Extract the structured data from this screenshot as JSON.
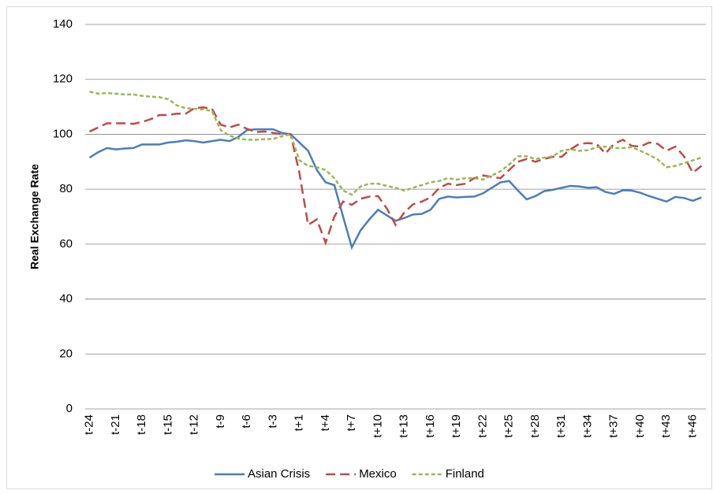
{
  "chart_data": {
    "type": "line",
    "y_label": "Real Exchange Rate",
    "categories": [
      "t-24",
      null,
      null,
      "t-21",
      null,
      null,
      "t-18",
      null,
      null,
      "t-15",
      null,
      null,
      "t-12",
      null,
      null,
      "t-9",
      null,
      null,
      "t-6",
      null,
      null,
      "t-3",
      null,
      null,
      "t+1",
      null,
      null,
      "t+4",
      null,
      null,
      "t+7",
      null,
      null,
      "t+10",
      null,
      null,
      "t+13",
      null,
      null,
      "t+16",
      null,
      null,
      "t+19",
      null,
      null,
      "t+22",
      null,
      null,
      "t+25",
      null,
      null,
      "t+28",
      null,
      null,
      "t+31",
      null,
      null,
      "t+34",
      null,
      null,
      "t+37",
      null,
      null,
      "t+40",
      null,
      null,
      "t+43",
      null,
      null,
      "t+46",
      null
    ],
    "series": [
      {
        "name": "Asian Crisis",
        "color": "#4a7ebb",
        "style": "solid",
        "values": [
          91.5,
          93.5,
          95,
          94.5,
          94.8,
          95,
          96.3,
          96.3,
          96.3,
          97,
          97.3,
          97.8,
          97.5,
          97,
          97.5,
          98,
          97.5,
          99,
          101.5,
          101.8,
          101.8,
          101.8,
          100.5,
          100,
          97,
          94,
          87,
          82.5,
          81.5,
          70,
          58.8,
          65,
          69,
          72.5,
          70.5,
          68.5,
          69.5,
          70.8,
          71,
          72.5,
          76.5,
          77.3,
          77,
          77.2,
          77.3,
          78.5,
          80.5,
          82.5,
          83,
          79.5,
          76.3,
          77.5,
          79.3,
          79.8,
          80.5,
          81.2,
          81,
          80.5,
          80.7,
          79,
          78.3,
          79.6,
          79.5,
          78.7,
          77.5,
          76.5,
          75.5,
          77.2,
          76.8,
          75.8,
          77
        ]
      },
      {
        "name": "Mexico",
        "color": "#be4b48",
        "style": "dashed",
        "values": [
          101,
          102.5,
          104,
          104,
          104,
          103.8,
          104.5,
          105.5,
          107,
          107,
          107.5,
          107.5,
          109.5,
          109.8,
          109.3,
          103.5,
          102.5,
          103.5,
          102,
          100.8,
          101,
          100.5,
          100,
          100,
          86,
          67,
          69,
          60.5,
          70,
          75.5,
          74.3,
          76.5,
          77.3,
          77.5,
          73,
          67,
          71.5,
          74.5,
          75.5,
          77,
          80.5,
          82,
          81.5,
          82,
          84,
          85,
          84.5,
          84,
          87,
          90,
          91,
          90,
          91,
          91.8,
          91.8,
          94.5,
          96.5,
          96.8,
          96.5,
          93,
          96.5,
          98,
          95.8,
          95.5,
          97,
          96.5,
          94,
          95.5,
          92,
          86,
          88.5
        ]
      },
      {
        "name": "Finland",
        "color": "#98b954",
        "style": "dotted",
        "values": [
          115.5,
          114.8,
          115,
          114.8,
          114.5,
          114.5,
          114,
          113.7,
          113.5,
          112.8,
          110.5,
          109.5,
          109.3,
          109,
          108.5,
          101.5,
          99.5,
          98.5,
          98,
          98,
          98.2,
          98.3,
          99.3,
          100,
          90.5,
          88.5,
          88,
          87,
          84,
          79.5,
          78,
          81,
          82,
          82,
          81.2,
          80.5,
          79.5,
          80.5,
          81.5,
          82.5,
          83,
          84,
          83.5,
          84,
          84,
          83.5,
          85,
          86.5,
          89,
          92,
          92,
          91,
          91.5,
          92,
          94,
          94.5,
          94,
          94.2,
          95.3,
          95.5,
          95,
          95,
          95.3,
          94,
          92.5,
          90.8,
          88,
          88.5,
          89.5,
          90.5,
          91.5
        ]
      }
    ],
    "ylim": [
      0,
      140
    ],
    "yticks": [
      0,
      20,
      40,
      60,
      80,
      100,
      120,
      140
    ],
    "grid": true,
    "legend": "bottom"
  }
}
